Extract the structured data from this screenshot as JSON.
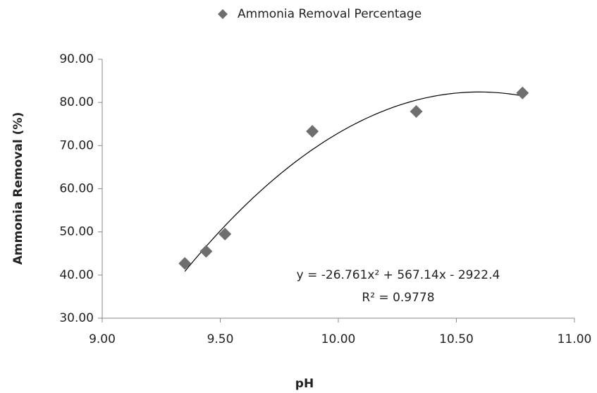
{
  "chart_data": {
    "type": "scatter",
    "x_label": "pH",
    "y_label": "Ammonia Removal (%)",
    "series": [
      {
        "name": "Ammonia Removal Percentage",
        "color": "#6e6e6e",
        "x": [
          9.35,
          9.44,
          9.52,
          9.89,
          10.33,
          10.78
        ],
        "values": [
          42.7,
          45.5,
          49.5,
          73.3,
          77.9,
          82.2
        ]
      }
    ],
    "trendline": {
      "equation": "y = -26.761x² + 567.14x - 2922.4",
      "r_squared": "R² = 0.9778",
      "coefficients": [
        -26.761,
        567.14,
        -2922.4
      ],
      "color": "#000000"
    },
    "xlim": [
      9,
      11
    ],
    "xticks": [
      {
        "value": 9,
        "label": "9.00"
      },
      {
        "value": 9.5,
        "label": "9.50"
      },
      {
        "value": 10,
        "label": "10.00"
      },
      {
        "value": 10.5,
        "label": "10.50"
      },
      {
        "value": 11,
        "label": "11.00"
      }
    ],
    "ylim": [
      30,
      90
    ],
    "yticks": [
      {
        "value": 30,
        "label": "30.00"
      },
      {
        "value": 40,
        "label": "40.00"
      },
      {
        "value": 50,
        "label": "50.00"
      },
      {
        "value": 60,
        "label": "60.00"
      },
      {
        "value": 70,
        "label": "70.00"
      },
      {
        "value": 80,
        "label": "80.00"
      },
      {
        "value": 90,
        "label": "90.00"
      }
    ],
    "grid": false,
    "legend": "top"
  }
}
